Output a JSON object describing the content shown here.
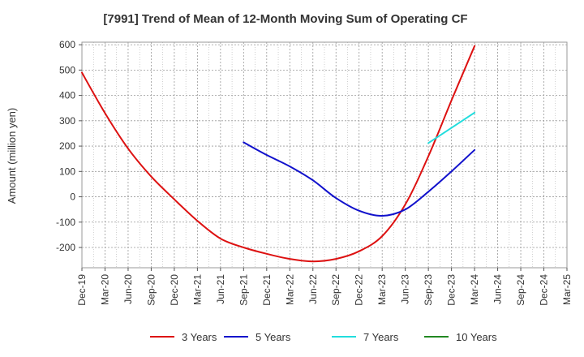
{
  "chart_data": {
    "type": "line",
    "title": "[7991]  Trend of Mean of 12-Month Moving Sum of Operating CF",
    "xlabel": "",
    "ylabel": "Amount (million yen)",
    "ylim": [
      -280,
      610
    ],
    "yticks": [
      600,
      500,
      400,
      300,
      200,
      100,
      0,
      -100,
      -200
    ],
    "categories": [
      "Dec-19",
      "Mar-20",
      "Jun-20",
      "Sep-20",
      "Dec-20",
      "Mar-21",
      "Jun-21",
      "Sep-21",
      "Dec-21",
      "Mar-22",
      "Jun-22",
      "Sep-22",
      "Dec-22",
      "Mar-23",
      "Jun-23",
      "Sep-23",
      "Dec-23",
      "Mar-24",
      "Jun-24",
      "Sep-24",
      "Dec-24",
      "Mar-25"
    ],
    "grid": true,
    "legend_position": "bottom",
    "series": [
      {
        "name": "3 Years",
        "color": "#dd1111",
        "values": [
          490,
          330,
          190,
          80,
          -10,
          -95,
          -165,
          -200,
          -225,
          -245,
          -255,
          -245,
          -215,
          -155,
          -30,
          160,
          380,
          595,
          null,
          null,
          null,
          null
        ]
      },
      {
        "name": "5 Years",
        "color": "#1111cc",
        "values": [
          null,
          null,
          null,
          null,
          null,
          null,
          null,
          215,
          165,
          120,
          65,
          -5,
          -55,
          -75,
          -50,
          20,
          100,
          185,
          null,
          null,
          null,
          null
        ]
      },
      {
        "name": "7 Years",
        "color": "#22dddd",
        "values": [
          null,
          null,
          null,
          null,
          null,
          null,
          null,
          null,
          null,
          null,
          null,
          null,
          null,
          null,
          null,
          212,
          272,
          332,
          null,
          null,
          null,
          null
        ]
      },
      {
        "name": "10 Years",
        "color": "#228822",
        "values": [
          null,
          null,
          null,
          null,
          null,
          null,
          null,
          null,
          null,
          null,
          null,
          null,
          null,
          null,
          null,
          null,
          null,
          null,
          null,
          null,
          null,
          null
        ]
      }
    ]
  }
}
